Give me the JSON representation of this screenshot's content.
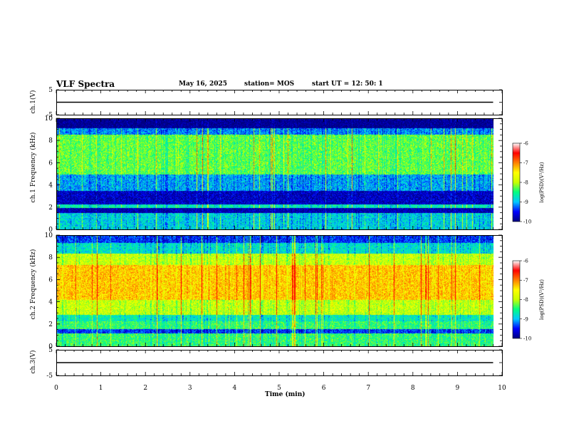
{
  "header": {
    "title": "VLF Spectra",
    "date": "May 16, 2025",
    "station": "station= MOS",
    "start": "start  UT =    12: 50: 1"
  },
  "chart_data": [
    {
      "type": "line",
      "name": "ch1-waveform",
      "ylabel": "ch.1(V)",
      "yticks": [
        "5",
        "-5"
      ],
      "ylim": [
        -5,
        5
      ],
      "x": [
        0,
        9.8
      ],
      "y": [
        0,
        0
      ]
    },
    {
      "type": "heatmap",
      "name": "ch1-spectrogram",
      "ylabel": "ch.1 Frequency (kHz)",
      "yticks": [
        "10",
        "8",
        "6",
        "4",
        "2",
        "0"
      ],
      "ylim": [
        0,
        10
      ],
      "xlim": [
        0,
        9.8
      ],
      "colorbar": {
        "label": "log(PSD)(V²/Hz)",
        "ticks": [
          "-6",
          "-7",
          "-8",
          "-9",
          "-10"
        ],
        "range": [
          -10,
          -6
        ]
      },
      "bands_khz": [
        {
          "from": 9.2,
          "to": 10.0,
          "level": -10.0
        },
        {
          "from": 8.6,
          "to": 9.2,
          "level": -9.0
        },
        {
          "from": 5.0,
          "to": 8.6,
          "level": -8.0
        },
        {
          "from": 3.5,
          "to": 5.0,
          "level": -8.9
        },
        {
          "from": 2.3,
          "to": 3.5,
          "level": -9.7
        },
        {
          "from": 2.0,
          "to": 2.3,
          "level": -8.5
        },
        {
          "from": 1.5,
          "to": 2.0,
          "level": -9.8
        },
        {
          "from": 0.0,
          "to": 1.5,
          "level": -8.7
        }
      ]
    },
    {
      "type": "heatmap",
      "name": "ch2-spectrogram",
      "ylabel": "ch.2 Frequency (kHz)",
      "yticks": [
        "10",
        "8",
        "6",
        "4",
        "2",
        "0"
      ],
      "ylim": [
        0,
        10
      ],
      "xlim": [
        0,
        9.8
      ],
      "colorbar": {
        "label": "log(PSD)(V²/Hz)",
        "ticks": [
          "-6",
          "-7",
          "-8",
          "-9",
          "-10"
        ],
        "range": [
          -10,
          -6
        ]
      },
      "bands_khz": [
        {
          "from": 9.4,
          "to": 10.0,
          "level": -9.3
        },
        {
          "from": 8.4,
          "to": 9.4,
          "level": -8.6
        },
        {
          "from": 7.4,
          "to": 8.4,
          "level": -7.6
        },
        {
          "from": 4.2,
          "to": 7.4,
          "level": -6.9
        },
        {
          "from": 2.9,
          "to": 4.2,
          "level": -7.6
        },
        {
          "from": 2.3,
          "to": 2.9,
          "level": -8.5
        },
        {
          "from": 1.6,
          "to": 2.3,
          "level": -8.2
        },
        {
          "from": 1.2,
          "to": 1.6,
          "level": -9.3
        },
        {
          "from": 0.0,
          "to": 1.2,
          "level": -8.2
        }
      ]
    },
    {
      "type": "line",
      "name": "ch3-waveform",
      "ylabel": "ch.3(V)",
      "yticks": [
        "5",
        "-5"
      ],
      "ylim": [
        -5,
        5
      ],
      "x": [
        0,
        9.8
      ],
      "y": [
        0,
        0
      ]
    }
  ],
  "xaxis": {
    "label": "Time  (min)",
    "ticks": [
      "0",
      "1",
      "2",
      "3",
      "4",
      "5",
      "6",
      "7",
      "8",
      "9",
      "10"
    ],
    "xlim": [
      0,
      10
    ]
  },
  "colors": {
    "scale": [
      "#000080",
      "#0000ff",
      "#00c8ff",
      "#00ff80",
      "#c8ff00",
      "#ffff00",
      "#ff8000",
      "#ff0000",
      "#ffffff"
    ]
  }
}
